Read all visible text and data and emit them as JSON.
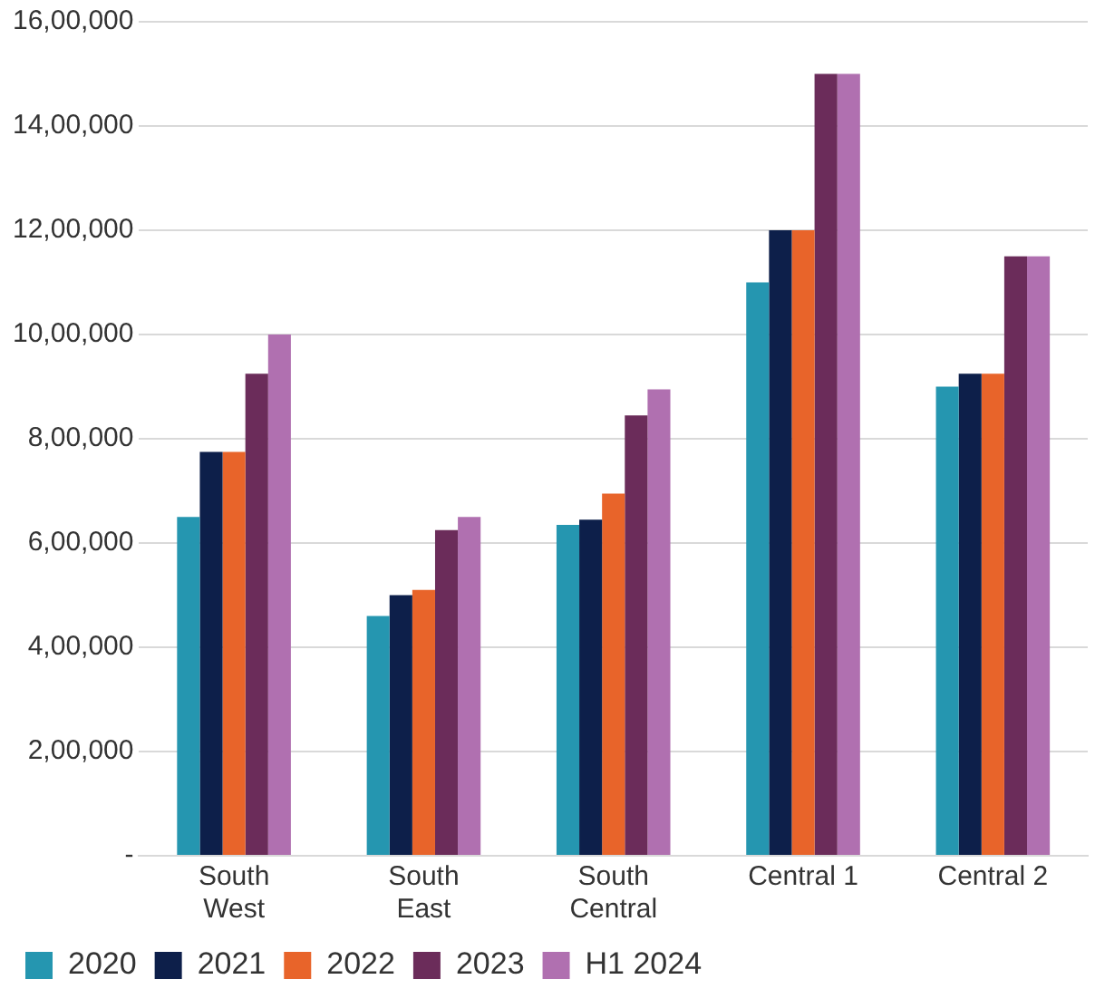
{
  "chart_data": {
    "type": "bar",
    "categories": [
      "South West",
      "South East",
      "South Central",
      "Central 1",
      "Central 2"
    ],
    "series": [
      {
        "name": "2020",
        "color": "#2596b0",
        "values": [
          650000,
          460000,
          635000,
          1100000,
          900000
        ]
      },
      {
        "name": "2021",
        "color": "#0d1f4a",
        "values": [
          775000,
          500000,
          645000,
          1200000,
          925000
        ]
      },
      {
        "name": "2022",
        "color": "#e8642a",
        "values": [
          775000,
          510000,
          695000,
          1200000,
          925000
        ]
      },
      {
        "name": "2023",
        "color": "#6b2c5a",
        "values": [
          925000,
          625000,
          845000,
          1500000,
          1150000
        ]
      },
      {
        "name": "H1 2024",
        "color": "#b070b0",
        "values": [
          1000000,
          650000,
          895000,
          1500000,
          1150000
        ]
      }
    ],
    "ylim": [
      0,
      1600000
    ],
    "yticks": [
      {
        "value": 0,
        "label": "-"
      },
      {
        "value": 200000,
        "label": "2,00,000"
      },
      {
        "value": 400000,
        "label": "4,00,000"
      },
      {
        "value": 600000,
        "label": "6,00,000"
      },
      {
        "value": 800000,
        "label": "8,00,000"
      },
      {
        "value": 1000000,
        "label": "10,00,000"
      },
      {
        "value": 1200000,
        "label": "12,00,000"
      },
      {
        "value": 1400000,
        "label": "14,00,000"
      },
      {
        "value": 1600000,
        "label": "16,00,000"
      }
    ],
    "grid": "y",
    "legend": "bottom left"
  }
}
